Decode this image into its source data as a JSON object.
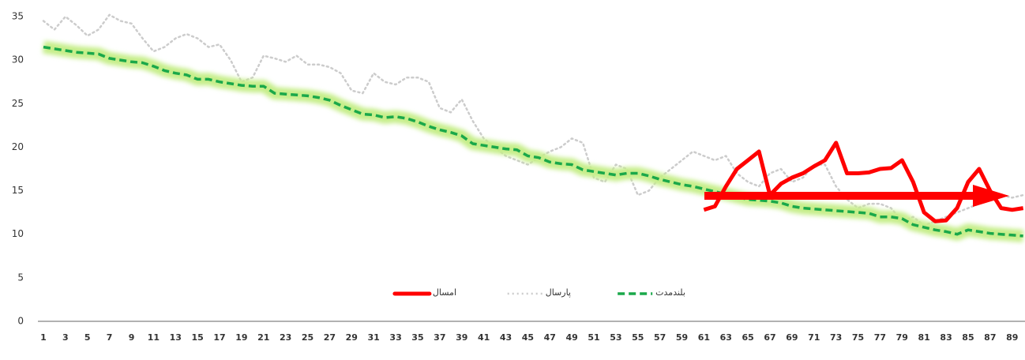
{
  "chart_data": {
    "type": "line",
    "categories": [
      1,
      null,
      3,
      null,
      5,
      null,
      7,
      null,
      9,
      null,
      11,
      null,
      13,
      null,
      15,
      null,
      17,
      null,
      19,
      null,
      21,
      null,
      23,
      null,
      25,
      null,
      27,
      null,
      29,
      null,
      31,
      null,
      33,
      null,
      35,
      null,
      37,
      null,
      39,
      null,
      41,
      null,
      43,
      null,
      45,
      null,
      47,
      null,
      49,
      null,
      51,
      null,
      53,
      null,
      55,
      null,
      57,
      null,
      59,
      null,
      61,
      null,
      63,
      null,
      65,
      null,
      67,
      null,
      69,
      null,
      71,
      null,
      73,
      null,
      75,
      null,
      77,
      null,
      79,
      null,
      81,
      null,
      83,
      null,
      85,
      null,
      87,
      null,
      89,
      null
    ],
    "series": [
      {
        "name": "بلندمدت",
        "color": "#1aa84a",
        "style": "dashed",
        "glow": "#c6ee8a",
        "values": [
          31.5,
          31.3,
          31.1,
          30.9,
          30.8,
          30.7,
          30.2,
          30.0,
          29.8,
          29.7,
          29.3,
          28.8,
          28.5,
          28.3,
          27.8,
          27.8,
          27.5,
          27.3,
          27.1,
          27.0,
          27.0,
          26.2,
          26.1,
          26.0,
          25.9,
          25.7,
          25.4,
          24.8,
          24.3,
          23.8,
          23.7,
          23.4,
          23.5,
          23.3,
          22.9,
          22.4,
          22.0,
          21.7,
          21.3,
          20.4,
          20.2,
          20.0,
          19.8,
          19.7,
          19.0,
          18.8,
          18.3,
          18.1,
          18.0,
          17.4,
          17.2,
          17.0,
          16.8,
          17.0,
          17.0,
          16.7,
          16.3,
          16.0,
          15.7,
          15.5,
          15.2,
          14.9,
          14.6,
          14.3,
          14.0,
          13.9,
          13.8,
          13.6,
          13.2,
          13.0,
          12.9,
          12.8,
          12.7,
          12.6,
          12.5,
          12.4,
          12.0,
          12.0,
          11.8,
          11.1,
          10.8,
          10.5,
          10.3,
          10.0,
          10.5,
          10.3,
          10.1,
          10.0,
          9.9,
          9.8
        ]
      },
      {
        "name": "پارسال",
        "color": "#cccccc",
        "style": "dotted",
        "values": [
          34.5,
          33.5,
          35,
          34,
          32.8,
          33.5,
          35.2,
          34.5,
          34.2,
          32.5,
          31,
          31.5,
          32.5,
          33,
          32.5,
          31.5,
          31.8,
          30,
          27.5,
          28,
          30.5,
          30.2,
          29.8,
          30.5,
          29.5,
          29.5,
          29.2,
          28.5,
          26.5,
          26.2,
          28.5,
          27.5,
          27.2,
          28,
          28,
          27.5,
          24.5,
          24,
          25.5,
          23,
          21,
          20,
          19,
          18.5,
          18,
          18.8,
          19.5,
          20,
          21,
          20.5,
          16.5,
          16,
          18,
          17.5,
          14.5,
          15,
          16.5,
          17.5,
          18.5,
          19.5,
          19,
          18.5,
          19,
          17,
          16,
          15.5,
          17,
          17.5,
          16,
          16.5,
          18,
          18,
          15.5,
          14,
          13,
          13.5,
          13.5,
          13,
          11.5,
          12,
          11,
          11.5,
          12,
          12.5,
          13,
          13.5,
          14,
          14.5,
          14.2,
          14.5
        ]
      },
      {
        "name": "امسال",
        "color": "#ff0000",
        "style": "solid",
        "values": [
          null,
          null,
          null,
          null,
          null,
          null,
          null,
          null,
          null,
          null,
          null,
          null,
          null,
          null,
          null,
          null,
          null,
          null,
          null,
          null,
          null,
          null,
          null,
          null,
          null,
          null,
          null,
          null,
          null,
          null,
          null,
          null,
          null,
          null,
          null,
          null,
          null,
          null,
          null,
          null,
          null,
          null,
          null,
          null,
          null,
          null,
          null,
          null,
          null,
          null,
          null,
          null,
          null,
          null,
          null,
          null,
          null,
          null,
          null,
          null,
          12.8,
          13.2,
          15.5,
          17.5,
          18.5,
          19.5,
          14.5,
          15.8,
          16.5,
          17,
          17.8,
          18.5,
          20.5,
          17,
          17,
          17.1,
          17.5,
          17.6,
          18.5,
          16,
          12.5,
          11.5,
          11.6,
          13,
          16,
          17.5,
          15,
          13,
          12.8,
          13
        ]
      }
    ],
    "ylim": [
      0,
      35
    ],
    "yticks": [
      0,
      5,
      10,
      15,
      20,
      25,
      30,
      35
    ],
    "grid": false,
    "legend": "bottom"
  }
}
